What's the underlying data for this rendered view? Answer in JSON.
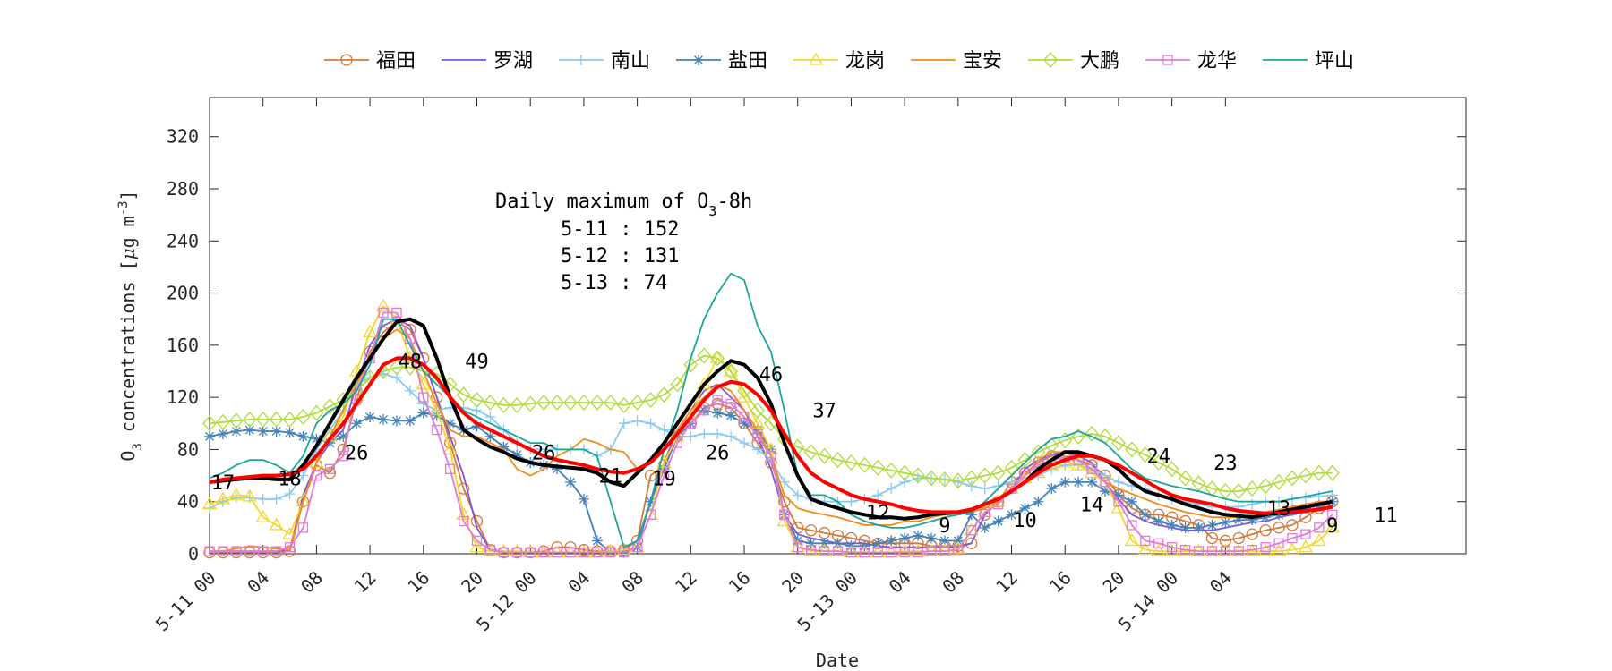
{
  "chart_data": {
    "type": "line",
    "title": "",
    "xlabel": "Date",
    "ylabel": {
      "pre": "O",
      "sub": "3",
      "mid": " concentrations [",
      "mu": "μ",
      "post": "g m",
      "sup": "-3",
      "end": "]"
    },
    "ylim": [
      0,
      350
    ],
    "yticks": [
      0,
      40,
      80,
      120,
      160,
      200,
      240,
      280,
      320
    ],
    "xlim": [
      0,
      94
    ],
    "xticks": [
      0,
      4,
      8,
      12,
      16,
      20,
      24,
      28,
      32,
      36,
      40,
      44,
      48,
      52,
      56,
      60,
      64,
      68,
      72,
      76
    ],
    "xtick_labels": [
      "5-11 00",
      "04",
      "08",
      "12",
      "16",
      "20",
      "5-12 00",
      "04",
      "08",
      "12",
      "16",
      "20",
      "5-13 00",
      "04",
      "08",
      "12",
      "16",
      "20",
      "5-14 00",
      "04"
    ],
    "legend_position": "top",
    "series": [
      {
        "name": "福田",
        "color": "#d2793a",
        "marker": "circle",
        "values": [
          1,
          1,
          1,
          1,
          1,
          1,
          2,
          40,
          68,
          62,
          80,
          118,
          155,
          170,
          178,
          172,
          150,
          120,
          85,
          50,
          25,
          3,
          1,
          1,
          1,
          2,
          5,
          5,
          3,
          2,
          2,
          3,
          10,
          60,
          68,
          90,
          100,
          112,
          115,
          112,
          100,
          85,
          70,
          40,
          20,
          18,
          16,
          14,
          12,
          10,
          8,
          8,
          8,
          8,
          6,
          6,
          6,
          8,
          30,
          40,
          55,
          62,
          70,
          75,
          75,
          72,
          68,
          60,
          45,
          35,
          30,
          30,
          28,
          25,
          22,
          12,
          10,
          12,
          15,
          18,
          20,
          22,
          28,
          35,
          40
        ]
      },
      {
        "name": "罗湖",
        "color": "#7e57d6",
        "marker": "none",
        "values": [
          2,
          2,
          2,
          2,
          2,
          2,
          3,
          45,
          70,
          85,
          95,
          130,
          160,
          175,
          180,
          175,
          150,
          120,
          90,
          60,
          20,
          3,
          2,
          1,
          1,
          1,
          1,
          1,
          1,
          1,
          1,
          1,
          5,
          40,
          70,
          95,
          110,
          125,
          130,
          120,
          110,
          90,
          65,
          30,
          15,
          12,
          10,
          8,
          8,
          8,
          6,
          5,
          5,
          5,
          5,
          5,
          5,
          8,
          30,
          40,
          50,
          65,
          72,
          76,
          78,
          75,
          70,
          55,
          42,
          30,
          25,
          22,
          20,
          18,
          18,
          18,
          20,
          22,
          24,
          25,
          28,
          30,
          32,
          35,
          35
        ]
      },
      {
        "name": "南山",
        "color": "#8ac9f3",
        "marker": "plus",
        "values": [
          35,
          40,
          43,
          43,
          42,
          42,
          46,
          60,
          80,
          95,
          110,
          130,
          135,
          138,
          135,
          125,
          115,
          110,
          112,
          112,
          110,
          105,
          95,
          85,
          80,
          80,
          80,
          80,
          80,
          75,
          80,
          100,
          102,
          100,
          95,
          90,
          90,
          92,
          92,
          90,
          85,
          80,
          72,
          55,
          45,
          42,
          40,
          40,
          40,
          42,
          45,
          50,
          55,
          58,
          58,
          57,
          55,
          52,
          50,
          52,
          55,
          58,
          60,
          65,
          68,
          68,
          65,
          60,
          55,
          52,
          50,
          45,
          42,
          40,
          38,
          36,
          36,
          36,
          38,
          40,
          40,
          42,
          43,
          44,
          45
        ]
      },
      {
        "name": "盐田",
        "color": "#4482ba",
        "marker": "star",
        "values": [
          90,
          92,
          94,
          95,
          94,
          94,
          93,
          90,
          88,
          85,
          90,
          100,
          105,
          103,
          102,
          102,
          108,
          106,
          100,
          95,
          98,
          90,
          82,
          76,
          70,
          68,
          65,
          55,
          42,
          10,
          1,
          1,
          5,
          40,
          65,
          90,
          100,
          110,
          108,
          106,
          100,
          95,
          80,
          30,
          10,
          8,
          8,
          8,
          6,
          6,
          8,
          10,
          12,
          14,
          12,
          10,
          10,
          30,
          20,
          25,
          30,
          35,
          40,
          50,
          55,
          55,
          55,
          48,
          45,
          40,
          30,
          25,
          22,
          20,
          20,
          22,
          24,
          26,
          26,
          28,
          30,
          33,
          35,
          37,
          40
        ]
      },
      {
        "name": "龙岗",
        "color": "#f6d62a",
        "marker": "triangle",
        "values": [
          38,
          42,
          45,
          44,
          28,
          22,
          15,
          40,
          70,
          90,
          105,
          140,
          170,
          190,
          180,
          150,
          130,
          110,
          80,
          30,
          5,
          2,
          2,
          2,
          1,
          1,
          1,
          1,
          1,
          1,
          2,
          3,
          5,
          30,
          70,
          90,
          105,
          130,
          150,
          140,
          120,
          100,
          80,
          25,
          5,
          2,
          2,
          2,
          1,
          1,
          1,
          1,
          2,
          2,
          2,
          2,
          4,
          18,
          32,
          40,
          50,
          58,
          62,
          68,
          70,
          68,
          62,
          55,
          35,
          10,
          3,
          2,
          2,
          2,
          2,
          2,
          2,
          2,
          2,
          2,
          2,
          3,
          5,
          10,
          20
        ]
      },
      {
        "name": "宝安",
        "color": "#f28b1a",
        "marker": "none",
        "values": [
          1,
          2,
          4,
          6,
          5,
          4,
          3,
          40,
          70,
          90,
          110,
          130,
          150,
          165,
          172,
          165,
          140,
          115,
          95,
          90,
          90,
          85,
          80,
          65,
          60,
          65,
          75,
          80,
          88,
          85,
          80,
          78,
          65,
          70,
          80,
          95,
          110,
          120,
          130,
          125,
          110,
          95,
          75,
          45,
          35,
          32,
          30,
          28,
          25,
          22,
          22,
          22,
          25,
          25,
          28,
          30,
          30,
          32,
          35,
          40,
          50,
          60,
          72,
          78,
          78,
          72,
          65,
          55,
          50,
          46,
          42,
          38,
          35,
          32,
          30,
          28,
          28,
          28,
          30,
          32,
          34,
          36,
          38,
          40,
          40
        ]
      },
      {
        "name": "大鹏",
        "color": "#aedc3a",
        "marker": "diamond",
        "values": [
          100,
          101,
          102,
          103,
          103,
          103,
          103,
          105,
          108,
          113,
          118,
          125,
          135,
          140,
          143,
          143,
          140,
          138,
          130,
          122,
          118,
          116,
          114,
          114,
          115,
          116,
          116,
          116,
          116,
          116,
          116,
          114,
          116,
          118,
          122,
          130,
          145,
          152,
          150,
          140,
          125,
          110,
          100,
          88,
          82,
          78,
          75,
          72,
          70,
          68,
          66,
          64,
          62,
          60,
          58,
          57,
          56,
          58,
          60,
          62,
          66,
          72,
          78,
          83,
          87,
          90,
          92,
          90,
          85,
          80,
          76,
          70,
          65,
          58,
          54,
          50,
          48,
          48,
          50,
          52,
          55,
          58,
          60,
          62,
          62
        ]
      },
      {
        "name": "龙华",
        "color": "#e17ad8",
        "marker": "square",
        "values": [
          2,
          2,
          2,
          2,
          2,
          2,
          5,
          20,
          60,
          65,
          75,
          125,
          150,
          185,
          185,
          165,
          120,
          95,
          65,
          25,
          10,
          3,
          1,
          1,
          1,
          1,
          1,
          1,
          1,
          1,
          1,
          1,
          5,
          30,
          60,
          85,
          100,
          110,
          118,
          115,
          105,
          90,
          75,
          30,
          5,
          3,
          2,
          2,
          1,
          1,
          1,
          1,
          1,
          1,
          2,
          2,
          3,
          18,
          32,
          38,
          50,
          60,
          68,
          72,
          74,
          72,
          65,
          55,
          40,
          22,
          10,
          8,
          5,
          3,
          2,
          2,
          2,
          2,
          3,
          5,
          8,
          12,
          15,
          20,
          30
        ]
      },
      {
        "name": "坪山",
        "color": "#1aa69b",
        "marker": "none",
        "values": [
          58,
          62,
          68,
          72,
          72,
          68,
          62,
          75,
          100,
          110,
          115,
          125,
          145,
          180,
          180,
          160,
          140,
          130,
          120,
          110,
          105,
          100,
          95,
          90,
          85,
          85,
          80,
          80,
          80,
          75,
          40,
          5,
          10,
          40,
          80,
          110,
          150,
          180,
          200,
          215,
          210,
          175,
          155,
          110,
          60,
          45,
          45,
          40,
          30,
          25,
          22,
          20,
          20,
          22,
          25,
          28,
          30,
          32,
          40,
          50,
          60,
          70,
          80,
          88,
          90,
          94,
          90,
          85,
          75,
          65,
          58,
          55,
          52,
          50,
          48,
          45,
          42,
          40,
          40,
          40,
          40,
          42,
          44,
          46,
          48
        ]
      },
      {
        "name": "",
        "color": "#000000",
        "marker": "none",
        "width": 4,
        "values": [
          55,
          56,
          57,
          58,
          58,
          57,
          57,
          68,
          83,
          100,
          118,
          135,
          150,
          165,
          178,
          180,
          175,
          150,
          120,
          95,
          88,
          82,
          78,
          73,
          70,
          68,
          67,
          66,
          65,
          62,
          55,
          52,
          62,
          72,
          85,
          100,
          115,
          130,
          140,
          148,
          145,
          135,
          115,
          85,
          60,
          42,
          38,
          35,
          32,
          30,
          28,
          28,
          27,
          28,
          30,
          31,
          32,
          34,
          38,
          42,
          48,
          55,
          65,
          72,
          78,
          78,
          75,
          72,
          65,
          55,
          48,
          45,
          42,
          38,
          35,
          32,
          30,
          29,
          28,
          30,
          32,
          34,
          36,
          38,
          40
        ]
      },
      {
        "name": "",
        "color": "#ff0000",
        "marker": "none",
        "width": 4,
        "values": [
          55,
          57,
          58,
          59,
          60,
          60,
          61,
          65,
          75,
          88,
          100,
          115,
          130,
          145,
          150,
          150,
          145,
          135,
          120,
          108,
          100,
          95,
          90,
          85,
          80,
          75,
          72,
          70,
          68,
          65,
          63,
          62,
          65,
          70,
          80,
          92,
          105,
          118,
          128,
          132,
          130,
          122,
          110,
          92,
          75,
          62,
          55,
          50,
          45,
          42,
          40,
          38,
          35,
          33,
          32,
          32,
          32,
          34,
          38,
          42,
          48,
          55,
          62,
          68,
          72,
          75,
          75,
          72,
          68,
          62,
          56,
          50,
          45,
          42,
          40,
          38,
          35,
          33,
          32,
          31,
          31,
          32,
          33,
          34,
          36
        ]
      }
    ],
    "annotations": [
      {
        "x": 1,
        "y": 55,
        "text": "17"
      },
      {
        "x": 6,
        "y": 58,
        "text": "18"
      },
      {
        "x": 11,
        "y": 78,
        "text": "26"
      },
      {
        "x": 15,
        "y": 148,
        "text": "48"
      },
      {
        "x": 20,
        "y": 148,
        "text": "49"
      },
      {
        "x": 25,
        "y": 78,
        "text": "26"
      },
      {
        "x": 30,
        "y": 60,
        "text": "21"
      },
      {
        "x": 34,
        "y": 58,
        "text": "19"
      },
      {
        "x": 38,
        "y": 78,
        "text": "26"
      },
      {
        "x": 42,
        "y": 138,
        "text": "46"
      },
      {
        "x": 46,
        "y": 110,
        "text": "37"
      },
      {
        "x": 50,
        "y": 32,
        "text": "12"
      },
      {
        "x": 55,
        "y": 22,
        "text": "9"
      },
      {
        "x": 61,
        "y": 26,
        "text": "10"
      },
      {
        "x": 66,
        "y": 38,
        "text": "14"
      },
      {
        "x": 71,
        "y": 75,
        "text": "24"
      },
      {
        "x": 76,
        "y": 70,
        "text": "23"
      },
      {
        "x": 80,
        "y": 35,
        "text": "13"
      },
      {
        "x": 84,
        "y": 22,
        "text": "9"
      },
      {
        "x": 88,
        "y": 30,
        "text": "11"
      }
    ],
    "inset_text": {
      "title_pre": "Daily maximum of O",
      "title_sub": "3",
      "title_post": "-8h",
      "lines": [
        "5-11 : 152",
        "5-12 : 131",
        "5-13 : 74"
      ]
    }
  }
}
